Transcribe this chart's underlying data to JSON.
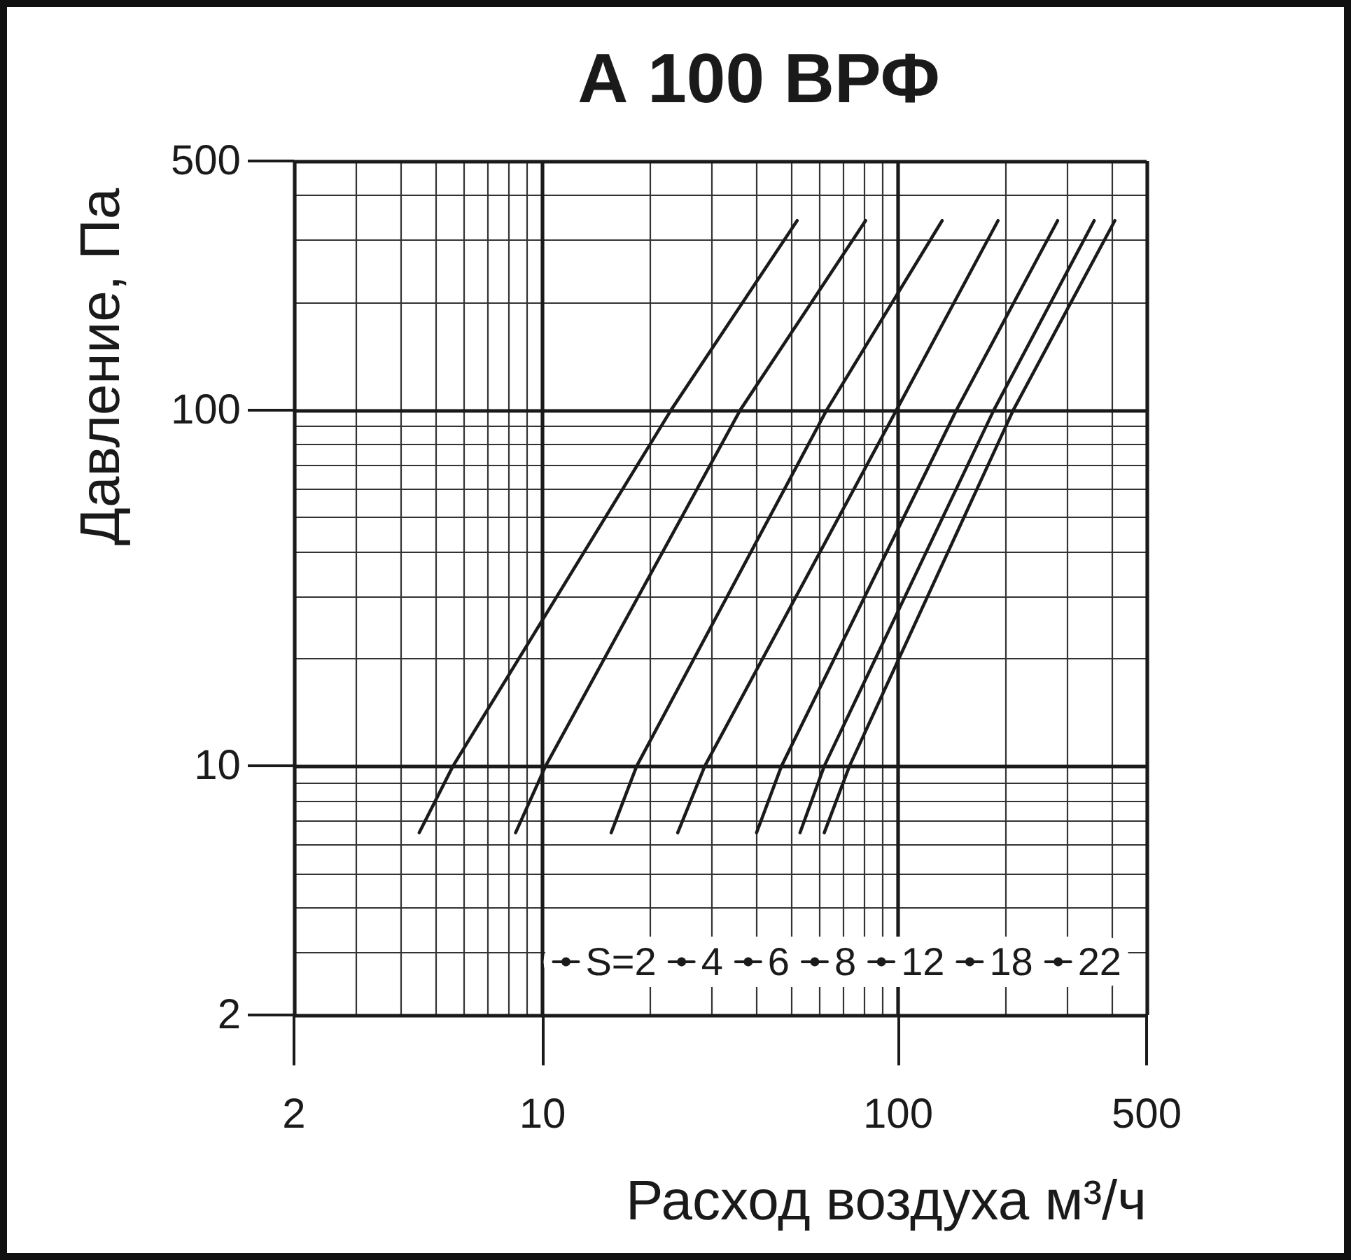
{
  "chart_data": {
    "type": "line",
    "title": "А 100 ВРФ",
    "xlabel": "Расход воздуха м³/ч",
    "ylabel": "Давление, Па",
    "log": "xy",
    "xlim": [
      2,
      500
    ],
    "ylim": [
      2,
      500
    ],
    "xticks": [
      2,
      {
        "value": 3,
        "label": null
      },
      {
        "value": 4,
        "label": null
      },
      {
        "value": 5,
        "label": null
      },
      {
        "value": 6,
        "label": null
      },
      {
        "value": 7,
        "label": null
      },
      {
        "value": 8,
        "label": null
      },
      {
        "value": 9,
        "label": null
      },
      10,
      {
        "value": 20,
        "label": null
      },
      {
        "value": 30,
        "label": null
      },
      {
        "value": 40,
        "label": null
      },
      {
        "value": 50,
        "label": null
      },
      {
        "value": 60,
        "label": null
      },
      {
        "value": 70,
        "label": null
      },
      {
        "value": 80,
        "label": null
      },
      {
        "value": 90,
        "label": null
      },
      100,
      {
        "value": 200,
        "label": null
      },
      {
        "value": 300,
        "label": null
      },
      {
        "value": 400,
        "label": null
      },
      500
    ],
    "yticks": [
      2,
      {
        "value": 3,
        "label": null
      },
      {
        "value": 4,
        "label": null
      },
      {
        "value": 5,
        "label": null
      },
      {
        "value": 6,
        "label": null
      },
      {
        "value": 7,
        "label": null
      },
      {
        "value": 8,
        "label": null
      },
      {
        "value": 9,
        "label": null
      },
      10,
      {
        "value": 20,
        "label": null
      },
      {
        "value": 30,
        "label": null
      },
      {
        "value": 40,
        "label": null
      },
      {
        "value": 50,
        "label": null
      },
      {
        "value": 60,
        "label": null
      },
      {
        "value": 70,
        "label": null
      },
      {
        "value": 80,
        "label": null
      },
      {
        "value": 90,
        "label": null
      },
      100,
      {
        "value": 200,
        "label": null
      },
      {
        "value": 300,
        "label": null
      },
      {
        "value": 400,
        "label": null
      },
      500
    ],
    "grid": true,
    "legend": "bottom right",
    "marker": "none",
    "line_style": "solid",
    "series": [
      {
        "name": "S=2",
        "color": "#1a1a1a",
        "x": [
          4.5,
          5.6,
          23,
          52
        ],
        "values": [
          6.5,
          10,
          100,
          340
        ]
      },
      {
        "name": "4",
        "color": "#1a1a1a",
        "x": [
          8.4,
          10.2,
          36,
          81
        ],
        "values": [
          6.5,
          10,
          100,
          340
        ]
      },
      {
        "name": "6",
        "color": "#1a1a1a",
        "x": [
          15.6,
          18.4,
          63,
          133
        ],
        "values": [
          6.5,
          10,
          100,
          340
        ]
      },
      {
        "name": "8",
        "color": "#1a1a1a",
        "x": [
          24,
          28.6,
          99,
          191
        ],
        "values": [
          6.5,
          10,
          100,
          340
        ]
      },
      {
        "name": "12",
        "color": "#1a1a1a",
        "x": [
          40,
          47,
          146,
          281
        ],
        "values": [
          6.5,
          10,
          100,
          340
        ]
      },
      {
        "name": "18",
        "color": "#1a1a1a",
        "x": [
          53,
          62,
          186,
          356
        ],
        "values": [
          6.5,
          10,
          100,
          340
        ]
      },
      {
        "name": "22",
        "color": "#1a1a1a",
        "x": [
          62,
          73,
          211,
          407
        ],
        "values": [
          6.5,
          10,
          100,
          340
        ]
      }
    ]
  }
}
